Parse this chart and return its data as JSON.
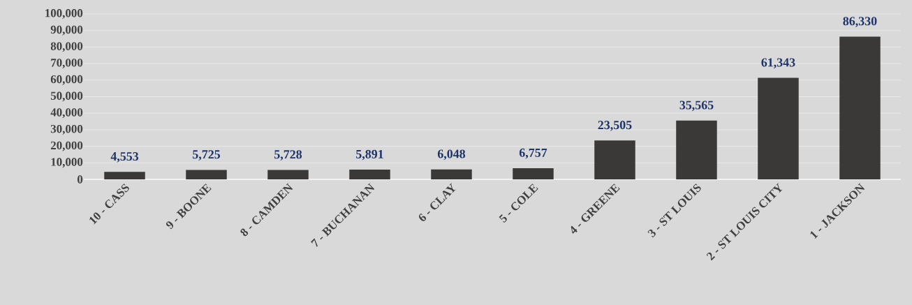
{
  "chart_data": {
    "type": "bar",
    "categories": [
      "10 - CASS",
      "9 - BOONE",
      "8 - CAMDEN",
      "7 - BUCHANAN",
      "6 - CLAY",
      "5 - COLE",
      "4 - GREENE",
      "3 - ST LOUIS",
      "2 - ST LOUIS CITY",
      "1 - JACKSON"
    ],
    "values": [
      4553,
      5725,
      5728,
      5891,
      6048,
      6757,
      23505,
      35565,
      61343,
      86330
    ],
    "color": "#3a3937",
    "ylim": [
      0,
      100000
    ],
    "yticks": [
      {
        "value": 0,
        "label": "0"
      },
      {
        "value": 10000,
        "label": "10,000"
      },
      {
        "value": 20000,
        "label": "20,000"
      },
      {
        "value": 30000,
        "label": "30,000"
      },
      {
        "value": 40000,
        "label": "40,000"
      },
      {
        "value": 50000,
        "label": "50,000"
      },
      {
        "value": 60000,
        "label": "60,000"
      },
      {
        "value": 70000,
        "label": "70,000"
      },
      {
        "value": 80000,
        "label": "80,000"
      },
      {
        "value": 90000,
        "label": "90,000"
      },
      {
        "value": 100000,
        "label": "100,000"
      }
    ],
    "value_labels": [
      "4,553",
      "5,725",
      "5,728",
      "5,891",
      "6,048",
      "6,757",
      "23,505",
      "35,565",
      "61,343",
      "86,330"
    ],
    "grid": "y"
  }
}
